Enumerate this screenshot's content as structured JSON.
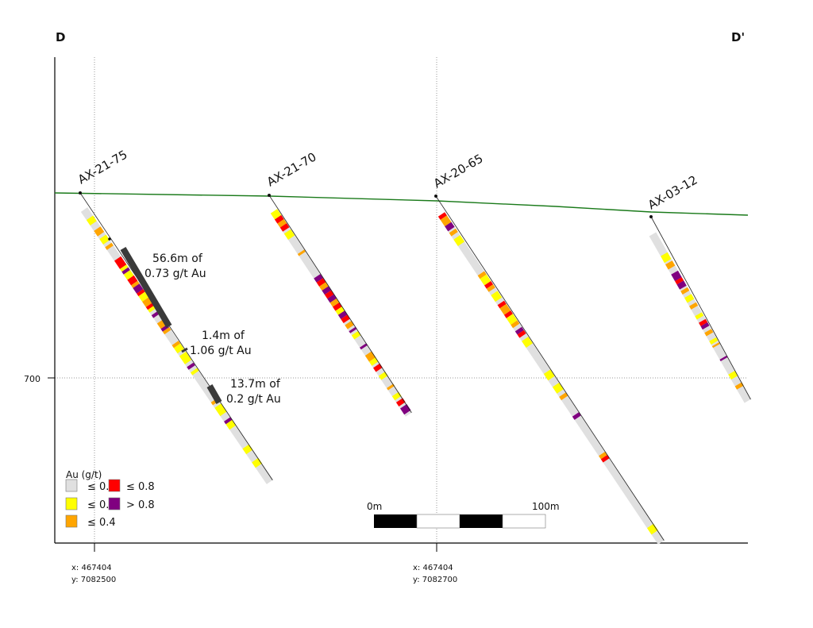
{
  "section": {
    "start_label": "D",
    "end_label": "D'"
  },
  "elevation_label": "700",
  "holes": [
    {
      "id": "AX-21-75"
    },
    {
      "id": "AX-21-70"
    },
    {
      "id": "AX-20-65"
    },
    {
      "id": "AX-03-12"
    }
  ],
  "intercepts": [
    {
      "line1": "56.6m of",
      "line2": "0.73 g/t Au"
    },
    {
      "line1": "1.4m of",
      "line2": "1.06 g/t Au"
    },
    {
      "line1": "13.7m of",
      "line2": "0.2 g/t Au"
    }
  ],
  "legend": {
    "title": "Au (g/t)",
    "items": [
      {
        "label": "≤ 0.1",
        "color": "#e0e0e0"
      },
      {
        "label": "≤ 0.2",
        "color": "#ffff00"
      },
      {
        "label": "≤ 0.4",
        "color": "#ffa500"
      },
      {
        "label": "≤ 0.8",
        "color": "#ff0000"
      },
      {
        "label": "> 0.8",
        "color": "#800080"
      }
    ]
  },
  "scale_bar": {
    "start": "0m",
    "end": "100m"
  },
  "x_ticks": [
    {
      "x": "x: 467404",
      "y": "y: 7082500"
    },
    {
      "x": "x: 467404",
      "y": "y: 7082700"
    }
  ],
  "colors": {
    "topography": "#1a7a1a",
    "intercept_bar": "#3a3a3a"
  }
}
